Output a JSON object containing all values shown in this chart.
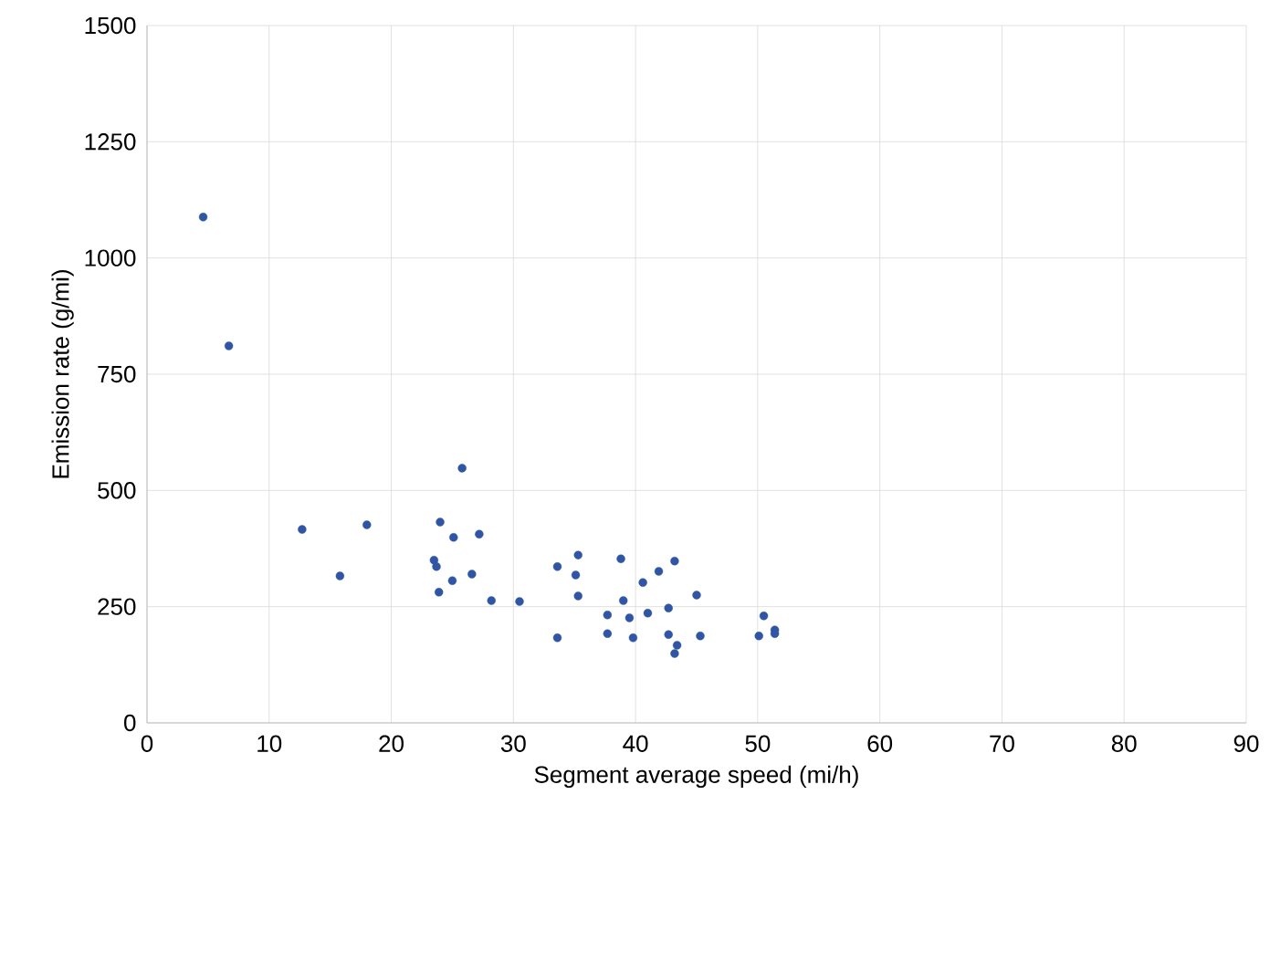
{
  "chart_data": {
    "type": "scatter",
    "xlabel": "Segment average speed (mi/h)",
    "ylabel": "Emission rate (g/mi)",
    "xlim": [
      0,
      90
    ],
    "ylim": [
      0,
      1500
    ],
    "xticks": [
      0,
      10,
      20,
      30,
      40,
      50,
      60,
      70,
      80,
      90
    ],
    "yticks": [
      0,
      250,
      500,
      750,
      1000,
      1250,
      1500
    ],
    "grid": true,
    "series": [
      {
        "color": "#2f55a4",
        "x": [
          4.6,
          6.7,
          12.7,
          15.8,
          18.0,
          23.5,
          23.7,
          23.9,
          24.0,
          25.0,
          25.1,
          25.8,
          26.6,
          27.2,
          28.2,
          30.5,
          33.6,
          33.6,
          35.1,
          35.3,
          35.3,
          37.7,
          37.7,
          38.8,
          39.0,
          39.5,
          39.8,
          40.6,
          41.0,
          41.9,
          42.7,
          42.7,
          43.2,
          43.2,
          43.4,
          45.0,
          45.3,
          50.1,
          50.5,
          51.4,
          51.4
        ],
        "values": [
          1088,
          811,
          416,
          316,
          426,
          350,
          336,
          281,
          432,
          306,
          399,
          548,
          320,
          406,
          263,
          261,
          336,
          183,
          318,
          361,
          273,
          232,
          192,
          353,
          263,
          226,
          183,
          302,
          236,
          326,
          247,
          190,
          348,
          149,
          167,
          275,
          187,
          187,
          230,
          200,
          192
        ]
      }
    ]
  }
}
